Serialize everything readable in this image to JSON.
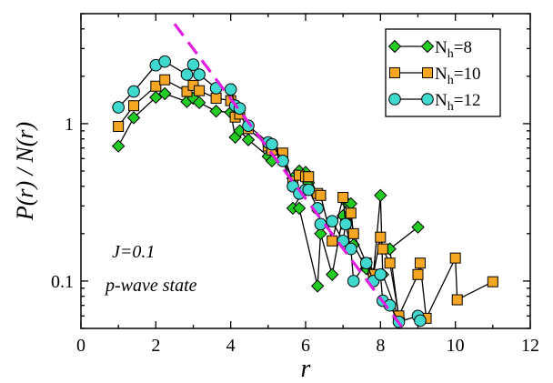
{
  "chart_data": {
    "type": "scatter",
    "xlabel": "r",
    "ylabel": "P(r) / N(r)",
    "xlim": [
      0,
      12
    ],
    "ylim": [
      0.05,
      5
    ],
    "yscale": "log",
    "grid": false,
    "legend_position": "top-right",
    "x_ticks": [
      0,
      2,
      4,
      6,
      8,
      10,
      12
    ],
    "y_ticks": [
      {
        "value": 0.1,
        "label": "0.1"
      },
      {
        "value": 1,
        "label": "1"
      }
    ],
    "annotations": [
      "J=0.1",
      "p-wave state"
    ],
    "series": [
      {
        "name": "N_h=8",
        "label_base": "N",
        "label_sub": "h",
        "label_rest": "=8",
        "marker": "diamond",
        "color": "#22cc22",
        "points": [
          [
            1.0,
            0.72
          ],
          [
            1.41,
            1.09
          ],
          [
            2.0,
            1.47
          ],
          [
            2.24,
            1.55
          ],
          [
            2.83,
            1.38
          ],
          [
            3.0,
            1.45
          ],
          [
            3.16,
            1.36
          ],
          [
            3.61,
            1.2
          ],
          [
            4.0,
            1.18
          ],
          [
            4.12,
            0.82
          ],
          [
            4.24,
            0.9
          ],
          [
            4.47,
            0.79
          ],
          [
            5.0,
            0.62
          ],
          [
            5.1,
            0.58
          ],
          [
            5.39,
            0.58
          ],
          [
            5.66,
            0.45
          ],
          [
            5.83,
            0.5
          ],
          [
            6.0,
            0.49
          ],
          [
            6.08,
            0.42
          ],
          [
            5.66,
            0.29
          ],
          [
            5.83,
            0.29
          ],
          [
            6.32,
            0.093
          ],
          [
            6.4,
            0.2
          ],
          [
            6.71,
            0.11
          ],
          [
            7.0,
            0.26
          ],
          [
            7.07,
            0.32
          ],
          [
            7.21,
            0.31
          ],
          [
            7.28,
            0.17
          ],
          [
            7.62,
            0.12
          ],
          [
            7.81,
            0.11
          ],
          [
            8.0,
            0.35
          ],
          [
            8.06,
            0.11
          ],
          [
            8.49,
            0.058
          ],
          [
            8.25,
            0.16
          ],
          [
            9.0,
            0.22
          ]
        ]
      },
      {
        "name": "N_h=10",
        "label_base": "N",
        "label_sub": "h",
        "label_rest": "=10",
        "marker": "square",
        "color": "#f5a623",
        "points": [
          [
            1.0,
            0.96
          ],
          [
            1.41,
            1.3
          ],
          [
            2.0,
            1.73
          ],
          [
            2.24,
            1.9
          ],
          [
            2.83,
            1.6
          ],
          [
            3.0,
            1.75
          ],
          [
            3.16,
            1.62
          ],
          [
            3.61,
            1.45
          ],
          [
            4.0,
            1.4
          ],
          [
            4.12,
            1.1
          ],
          [
            4.24,
            1.15
          ],
          [
            4.47,
            0.93
          ],
          [
            5.0,
            0.72
          ],
          [
            5.1,
            0.68
          ],
          [
            5.39,
            0.65
          ],
          [
            5.66,
            0.43
          ],
          [
            5.83,
            0.47
          ],
          [
            6.0,
            0.46
          ],
          [
            6.08,
            0.46
          ],
          [
            6.32,
            0.36
          ],
          [
            6.4,
            0.35
          ],
          [
            6.71,
            0.18
          ],
          [
            7.0,
            0.34
          ],
          [
            7.07,
            0.23
          ],
          [
            7.21,
            0.27
          ],
          [
            7.28,
            0.2
          ],
          [
            7.62,
            0.13
          ],
          [
            7.81,
            0.11
          ],
          [
            8.0,
            0.19
          ],
          [
            8.06,
            0.16
          ],
          [
            8.25,
            0.13
          ],
          [
            8.49,
            0.06
          ],
          [
            9.0,
            0.11
          ],
          [
            9.06,
            0.13
          ],
          [
            9.22,
            0.058
          ],
          [
            10.0,
            0.14
          ],
          [
            10.05,
            0.076
          ],
          [
            11.0,
            0.099
          ]
        ]
      },
      {
        "name": "N_h=12",
        "label_base": "N",
        "label_sub": "h",
        "label_rest": "=12",
        "marker": "circle",
        "color": "#40d9d0",
        "points": [
          [
            1.0,
            1.27
          ],
          [
            1.41,
            1.6
          ],
          [
            2.0,
            2.35
          ],
          [
            2.24,
            2.48
          ],
          [
            2.83,
            2.05
          ],
          [
            3.0,
            2.37
          ],
          [
            3.16,
            2.05
          ],
          [
            3.61,
            1.68
          ],
          [
            4.0,
            1.65
          ],
          [
            4.12,
            1.3
          ],
          [
            4.24,
            1.25
          ],
          [
            4.47,
            0.97
          ],
          [
            5.0,
            0.76
          ],
          [
            5.1,
            0.74
          ],
          [
            5.39,
            0.58
          ],
          [
            5.66,
            0.4
          ],
          [
            5.83,
            0.36
          ],
          [
            6.0,
            0.38
          ],
          [
            6.08,
            0.38
          ],
          [
            6.32,
            0.29
          ],
          [
            6.4,
            0.23
          ],
          [
            6.71,
            0.24
          ],
          [
            7.0,
            0.18
          ],
          [
            7.07,
            0.23
          ],
          [
            7.21,
            0.16
          ],
          [
            7.28,
            0.1
          ],
          [
            7.62,
            0.13
          ],
          [
            7.81,
            0.1
          ],
          [
            8.0,
            0.11
          ],
          [
            8.06,
            0.075
          ],
          [
            8.25,
            0.07
          ],
          [
            8.49,
            0.055
          ],
          [
            9.0,
            0.06
          ],
          [
            9.06,
            0.056
          ]
        ]
      }
    ],
    "fit_line": {
      "style": "dashed",
      "color": "#e11de1",
      "points": [
        [
          2.5,
          4.3
        ],
        [
          8.6,
          0.05
        ]
      ]
    }
  }
}
